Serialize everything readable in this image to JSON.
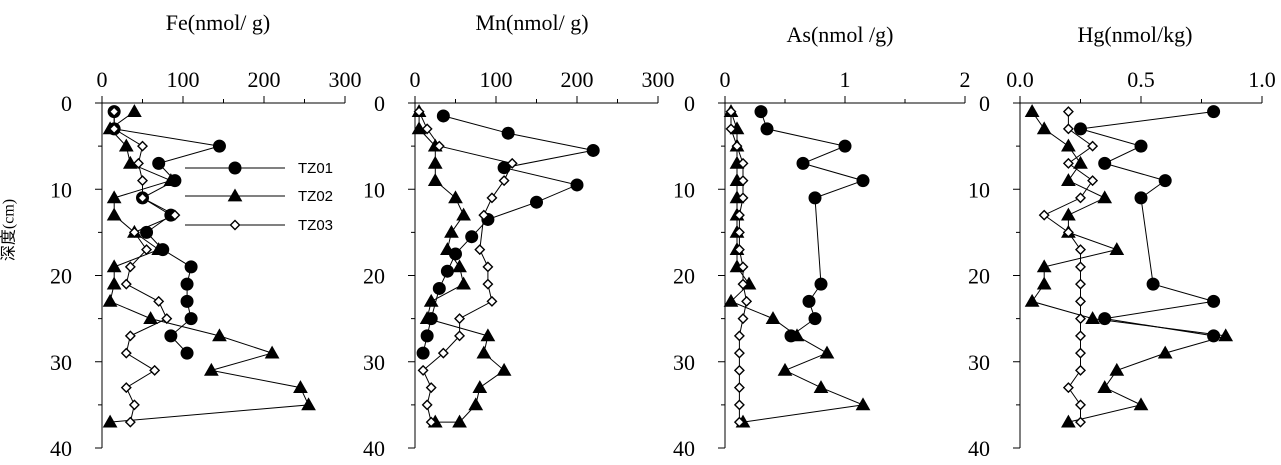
{
  "colors": {
    "ink": "#000000",
    "background": "#ffffff"
  },
  "figure": {
    "ylabel": "深度(cm)",
    "legend": {
      "placement": "upper-right of first panel",
      "entries": [
        "TZ01",
        "TZ02",
        "TZ03"
      ]
    }
  },
  "chart_data": [
    {
      "type": "line",
      "title": "Fe(nmol/ g)",
      "xlabel": "Fe(nmol/ g)",
      "ylabel": "深度(cm)",
      "xlim": [
        0,
        300
      ],
      "ylim": [
        40,
        0
      ],
      "xticks": [
        0,
        100,
        200,
        300
      ],
      "yticks": [
        0,
        10,
        20,
        30,
        40
      ],
      "grid": false,
      "series": [
        {
          "name": "TZ01",
          "marker": "circle",
          "x": [
            15,
            15,
            145,
            70,
            90,
            50,
            85,
            55,
            75,
            110,
            105,
            105,
            110,
            85,
            105
          ],
          "y": [
            1,
            3,
            5,
            7,
            9,
            11,
            13,
            15,
            17,
            19,
            21,
            23,
            25,
            27,
            29
          ]
        },
        {
          "name": "TZ02",
          "marker": "triangle",
          "x": [
            40,
            10,
            30,
            35,
            85,
            15,
            15,
            40,
            70,
            15,
            15,
            10,
            60,
            145,
            210,
            135,
            245,
            255,
            10
          ],
          "y": [
            1,
            3,
            5,
            7,
            9,
            11,
            13,
            15,
            17,
            19,
            21,
            23,
            25,
            27,
            29,
            31,
            33,
            35,
            37
          ]
        },
        {
          "name": "TZ03",
          "marker": "diamond",
          "x": [
            15,
            15,
            50,
            45,
            50,
            50,
            90,
            40,
            55,
            35,
            30,
            70,
            80,
            35,
            30,
            65,
            30,
            40,
            35
          ],
          "y": [
            1,
            3,
            5,
            7,
            9,
            11,
            13,
            15,
            17,
            19,
            21,
            23,
            25,
            27,
            29,
            31,
            33,
            35,
            37
          ]
        }
      ]
    },
    {
      "type": "line",
      "title": "Mn(nmol/ g)",
      "xlabel": "Mn(nmol/ g)",
      "xlim": [
        0,
        300
      ],
      "ylim": [
        40,
        0
      ],
      "xticks": [
        0,
        100,
        200,
        300
      ],
      "yticks": [
        0,
        10,
        20,
        30,
        40
      ],
      "grid": false,
      "series": [
        {
          "name": "TZ01",
          "marker": "circle",
          "x": [
            35,
            115,
            220,
            110,
            200,
            150,
            90,
            70,
            50,
            40,
            30,
            20,
            15,
            10
          ],
          "y": [
            1.5,
            3.5,
            5.5,
            7.5,
            9.5,
            11.5,
            13.5,
            15.5,
            17.5,
            19.5,
            21.5,
            25,
            27,
            29
          ]
        },
        {
          "name": "TZ02",
          "marker": "triangle",
          "x": [
            5,
            5,
            25,
            25,
            25,
            50,
            60,
            45,
            40,
            55,
            60,
            20,
            15,
            90,
            85,
            110,
            80,
            75,
            55,
            25
          ],
          "y": [
            1,
            3,
            5,
            7,
            9,
            11,
            13,
            15,
            17,
            19,
            21,
            23,
            25,
            27,
            29,
            31,
            33,
            35,
            37,
            37
          ]
        },
        {
          "name": "TZ03",
          "marker": "diamond",
          "x": [
            5,
            15,
            30,
            120,
            110,
            95,
            85,
            80,
            90,
            90,
            95,
            55,
            55,
            35,
            10,
            20,
            15,
            20
          ],
          "y": [
            1,
            3,
            5,
            7,
            9,
            11,
            13,
            17,
            19,
            21,
            23,
            25,
            27,
            29,
            31,
            33,
            35,
            37
          ]
        }
      ]
    },
    {
      "type": "line",
      "title": "As(nmol /g)",
      "xlabel": "As(nmol /g)",
      "xlim": [
        0,
        2
      ],
      "ylim": [
        40,
        0
      ],
      "xticks": [
        0,
        1,
        2
      ],
      "yticks": [
        0,
        10,
        20,
        30,
        40
      ],
      "grid": false,
      "series": [
        {
          "name": "TZ01",
          "marker": "circle",
          "x": [
            0.3,
            0.35,
            1.0,
            0.65,
            1.15,
            0.75,
            0.8,
            0.7,
            0.75,
            0.55
          ],
          "y": [
            1,
            3,
            5,
            7,
            9,
            11,
            21,
            23,
            25,
            27
          ]
        },
        {
          "name": "TZ02",
          "marker": "triangle",
          "x": [
            0.05,
            0.1,
            0.1,
            0.1,
            0.1,
            0.1,
            0.1,
            0.1,
            0.1,
            0.1,
            0.2,
            0.05,
            0.4,
            0.6,
            0.85,
            0.5,
            0.8,
            1.15,
            0.15
          ],
          "y": [
            1,
            3,
            5,
            7,
            9,
            11,
            13,
            15,
            17,
            19,
            21,
            23,
            25,
            27,
            29,
            31,
            33,
            35,
            37
          ]
        },
        {
          "name": "TZ03",
          "marker": "diamond",
          "x": [
            0.05,
            0.05,
            0.1,
            0.15,
            0.15,
            0.15,
            0.12,
            0.12,
            0.12,
            0.15,
            0.15,
            0.18,
            0.15,
            0.12,
            0.12,
            0.12,
            0.12,
            0.12,
            0.12
          ],
          "y": [
            1,
            3,
            5,
            7,
            9,
            11,
            13,
            15,
            17,
            19,
            21,
            23,
            25,
            27,
            29,
            31,
            33,
            35,
            37
          ]
        }
      ]
    },
    {
      "type": "line",
      "title": "Hg(nmol/kg)",
      "xlabel": "Hg(nmol/kg)",
      "xlim": [
        0,
        1.0
      ],
      "ylim": [
        40,
        0
      ],
      "xticks": [
        0.0,
        0.5,
        1.0
      ],
      "xtick_labels": [
        "0.0",
        "0.5",
        "1.0"
      ],
      "yticks": [
        0,
        10,
        20,
        30,
        40
      ],
      "grid": false,
      "series": [
        {
          "name": "TZ01",
          "marker": "circle",
          "x": [
            0.8,
            0.25,
            0.5,
            0.35,
            0.6,
            0.5,
            0.55,
            0.8,
            0.35,
            0.8
          ],
          "y": [
            1,
            3,
            5,
            7,
            9,
            11,
            21,
            23,
            25,
            27
          ]
        },
        {
          "name": "TZ02",
          "marker": "triangle",
          "x": [
            0.05,
            0.1,
            0.2,
            0.25,
            0.2,
            0.35,
            0.2,
            0.2,
            0.4,
            0.1,
            0.1,
            0.05,
            0.3,
            0.85,
            0.6,
            0.4,
            0.35,
            0.5,
            0.2
          ],
          "y": [
            1,
            3,
            5,
            7,
            9,
            11,
            13,
            15,
            17,
            19,
            21,
            23,
            25,
            27,
            29,
            31,
            33,
            35,
            37
          ]
        },
        {
          "name": "TZ03",
          "marker": "diamond",
          "x": [
            0.2,
            0.2,
            0.3,
            0.2,
            0.3,
            0.25,
            0.1,
            0.2,
            0.25,
            0.25,
            0.25,
            0.25,
            0.25,
            0.25,
            0.25,
            0.25,
            0.2,
            0.25,
            0.25
          ],
          "y": [
            1,
            3,
            5,
            7,
            9,
            11,
            13,
            15,
            17,
            19,
            21,
            23,
            25,
            27,
            29,
            31,
            33,
            35,
            37
          ]
        }
      ]
    }
  ]
}
